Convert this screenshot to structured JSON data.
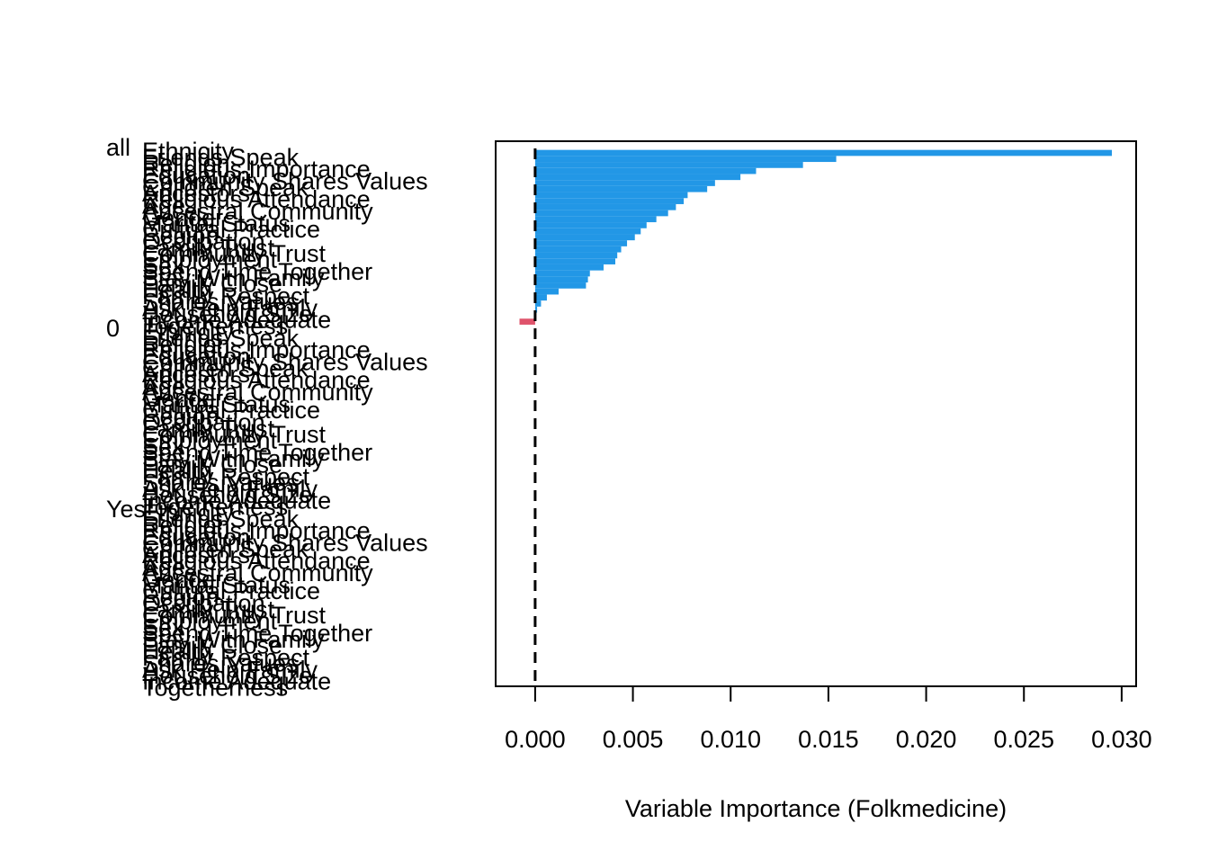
{
  "chart_data": {
    "type": "bar",
    "x_label": "Variable Importance (Folkmedicine)",
    "categories": [
      "Ethnicity",
      "Friends Speak",
      "Religion",
      "Religious Importance",
      "Education",
      "Community Shares Values",
      "Children Speak",
      "Ancestors",
      "Religious Attendance",
      "Age",
      "Ancestral Community",
      "Gender",
      "Marital Status",
      "Cultural Practice",
      "Region",
      "Occupation",
      "Family Trust",
      "Community Trust",
      "Employment",
      "Sex",
      "Spend Time Together",
      "Stay With Family",
      "Family Close",
      "Health",
      "Family Respect",
      "Shares Values",
      "Ask Help Family",
      "Household Size",
      "Income Adequate",
      "Togetherness"
    ],
    "groups": [
      {
        "name": "all",
        "color": "#000000",
        "values": [
          0.0295,
          0.0154,
          0.0137,
          0.0113,
          0.0105,
          0.0092,
          0.0088,
          0.0078,
          0.0076,
          0.0072,
          0.0068,
          0.0062,
          0.0057,
          0.0054,
          0.0051,
          0.0047,
          0.0044,
          0.0042,
          0.0041,
          0.0035,
          0.0028,
          0.0027,
          0.0026,
          0.0012,
          0.0006,
          0.0003,
          0.0001,
          0,
          -0.0008,
          0
        ]
      },
      {
        "name": "0",
        "color": "#DF536B",
        "values": [
          0,
          0,
          0,
          0,
          0,
          0,
          0,
          0,
          0,
          0,
          0,
          0,
          0,
          0,
          0,
          0,
          0,
          0,
          0,
          0,
          0,
          0,
          0,
          0,
          0,
          0,
          0,
          0,
          0,
          0
        ]
      },
      {
        "name": "Yes",
        "color": "#61D04F",
        "values": [
          0,
          0,
          0,
          0,
          0,
          0,
          0,
          0,
          0,
          0,
          0,
          0,
          0,
          0,
          0,
          0,
          0,
          0,
          0,
          0,
          0,
          0,
          0,
          0,
          0,
          0,
          0,
          0,
          0,
          0
        ]
      }
    ],
    "positive_color": "#2297E6",
    "negative_color": "#DF536B",
    "xlim": [
      -0.00202,
      0.03074
    ],
    "xticks": [
      {
        "value": 0,
        "label": "0.000"
      },
      {
        "value": 0.005,
        "label": "0.005"
      },
      {
        "value": 0.01,
        "label": "0.010"
      },
      {
        "value": 0.015,
        "label": "0.015"
      },
      {
        "value": 0.02,
        "label": "0.020"
      },
      {
        "value": 0.025,
        "label": "0.025"
      },
      {
        "value": 0.03,
        "label": "0.030"
      }
    ],
    "reference_line": 0
  }
}
